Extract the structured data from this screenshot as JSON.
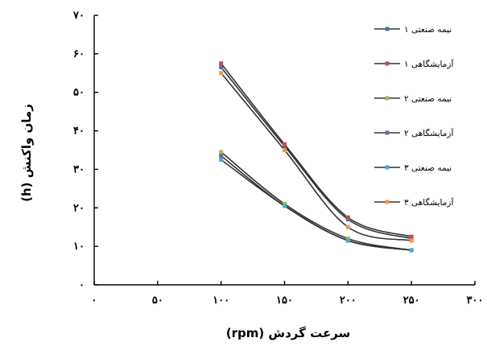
{
  "chart_data": {
    "type": "line",
    "title": "",
    "xlabel": "سرعت گردش (rpm)",
    "ylabel": "زمان واکنش (h)",
    "xlim": [
      0,
      300
    ],
    "ylim": [
      0,
      70
    ],
    "x_ticks": [
      0,
      50,
      100,
      150,
      200,
      250,
      300
    ],
    "y_ticks": [
      0,
      10,
      20,
      30,
      40,
      50,
      60,
      70
    ],
    "x_tick_labels": [
      "۰",
      "۵۰",
      "۱۰۰",
      "۱۵۰",
      "۲۰۰",
      "۲۵۰",
      "۳۰۰"
    ],
    "y_tick_labels": [
      "۰",
      "۱۰",
      "۲۰",
      "۳۰",
      "۴۰",
      "۵۰",
      "۶۰",
      "۷۰"
    ],
    "grid": false,
    "legend_position": "top-right",
    "x": [
      100,
      150,
      200,
      250
    ],
    "series": [
      {
        "name": "نیمه صنعتی ۱",
        "color": "#4a6fb5",
        "values": [
          56.5,
          36.0,
          17.0,
          12.0
        ]
      },
      {
        "name": "آزمایشگاهی ۱",
        "color": "#c0504d",
        "values": [
          57.5,
          36.5,
          17.5,
          12.5
        ]
      },
      {
        "name": "نیمه صنعتی ۲",
        "color": "#9bbb59",
        "values": [
          34.5,
          21.0,
          12.0,
          9.0
        ]
      },
      {
        "name": "آزمایشگاهی ۲",
        "color": "#8064a2",
        "values": [
          33.5,
          20.5,
          11.5,
          9.0
        ]
      },
      {
        "name": "نیمه صنعتی ۳",
        "color": "#4bacc6",
        "values": [
          32.5,
          20.5,
          11.5,
          9.0
        ]
      },
      {
        "name": "آزمایشگاهی ۳",
        "color": "#f79646",
        "values": [
          55.0,
          35.0,
          15.0,
          11.5
        ]
      }
    ]
  }
}
